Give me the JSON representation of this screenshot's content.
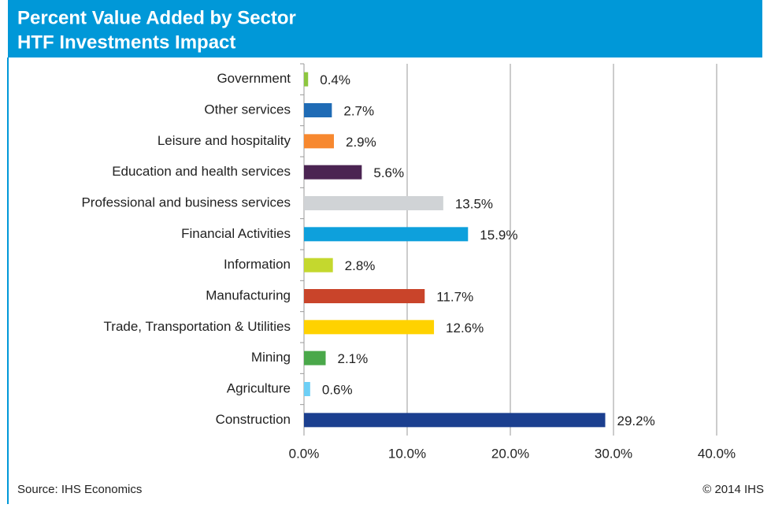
{
  "chart_data": {
    "type": "barh",
    "title": "Percent Value Added by Sector",
    "subtitle": "HTF Investments Impact",
    "categories": [
      "Government",
      "Other services",
      "Leisure and hospitality",
      "Education and health services",
      "Professional and business services",
      "Financial Activities",
      "Information",
      "Manufacturing",
      "Trade, Transportation & Utilities",
      "Mining",
      "Agriculture",
      "Construction"
    ],
    "values": [
      0.4,
      2.7,
      2.9,
      5.6,
      13.5,
      15.9,
      2.8,
      11.7,
      12.6,
      2.1,
      0.6,
      29.2
    ],
    "value_labels": [
      "0.4%",
      "2.7%",
      "2.9%",
      "5.6%",
      "13.5%",
      "15.9%",
      "2.8%",
      "11.7%",
      "12.6%",
      "2.1%",
      "0.6%",
      "29.2%"
    ],
    "colors": [
      "#8dc63f",
      "#1f6bb5",
      "#f7882f",
      "#4b2452",
      "#d0d3d6",
      "#0ea0dc",
      "#c4d82e",
      "#c9442a",
      "#ffd200",
      "#4aa84a",
      "#6dcff6",
      "#1b3f8f"
    ],
    "xlim": [
      0,
      40
    ],
    "xticks": [
      {
        "value": 0,
        "label": "0.0%"
      },
      {
        "value": 10,
        "label": "10.0%"
      },
      {
        "value": 20,
        "label": "20.0%"
      },
      {
        "value": 30,
        "label": "30.0%"
      },
      {
        "value": 40,
        "label": "40.0%"
      }
    ],
    "grid": true,
    "source": "Source: IHS Economics",
    "copyright": "© 2014 IHS"
  }
}
